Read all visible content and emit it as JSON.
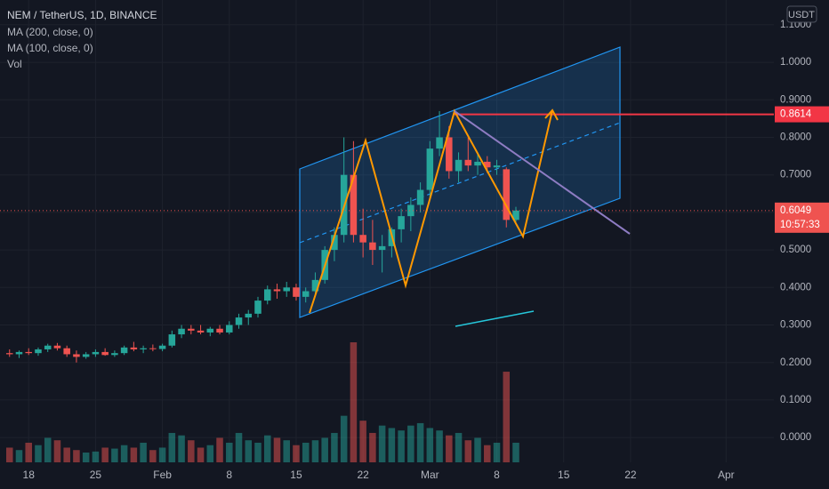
{
  "chart_data": {
    "type": "candlestick",
    "title": "NEM / TetherUS, 1D, BINANCE",
    "indicators": [
      "MA (200, close, 0)",
      "MA (100, close, 0)",
      "Vol"
    ],
    "currency": "USDT",
    "open": [
      0.225,
      0.222,
      0.228,
      0.225,
      0.235,
      0.245,
      0.238,
      0.222,
      0.215,
      0.222,
      0.228,
      0.22,
      0.225,
      0.24,
      0.235,
      0.238,
      0.236,
      0.245,
      0.275,
      0.29,
      0.285,
      0.28,
      0.29,
      0.28,
      0.3,
      0.32,
      0.33,
      0.365,
      0.395,
      0.39,
      0.4,
      0.375,
      0.39,
      0.42,
      0.5,
      0.54,
      0.7,
      0.54,
      0.52,
      0.5,
      0.51,
      0.555,
      0.59,
      0.62,
      0.66,
      0.77,
      0.8,
      0.71,
      0.74,
      0.725,
      0.735,
      0.72,
      0.715,
      0.58
    ],
    "high": [
      0.235,
      0.232,
      0.238,
      0.24,
      0.25,
      0.252,
      0.245,
      0.232,
      0.228,
      0.235,
      0.238,
      0.232,
      0.245,
      0.255,
      0.245,
      0.248,
      0.25,
      0.285,
      0.3,
      0.3,
      0.3,
      0.295,
      0.3,
      0.31,
      0.33,
      0.34,
      0.375,
      0.405,
      0.41,
      0.415,
      0.41,
      0.4,
      0.44,
      0.51,
      0.56,
      0.8,
      0.79,
      0.61,
      0.58,
      0.54,
      0.56,
      0.61,
      0.64,
      0.68,
      0.79,
      0.87,
      0.83,
      0.76,
      0.8,
      0.76,
      0.75,
      0.74,
      0.72,
      0.615
    ],
    "low": [
      0.215,
      0.212,
      0.22,
      0.218,
      0.228,
      0.232,
      0.215,
      0.2,
      0.21,
      0.215,
      0.218,
      0.215,
      0.22,
      0.23,
      0.225,
      0.23,
      0.23,
      0.24,
      0.265,
      0.275,
      0.275,
      0.27,
      0.275,
      0.275,
      0.29,
      0.3,
      0.32,
      0.355,
      0.37,
      0.375,
      0.365,
      0.36,
      0.38,
      0.41,
      0.47,
      0.52,
      0.52,
      0.48,
      0.46,
      0.44,
      0.48,
      0.52,
      0.55,
      0.6,
      0.64,
      0.75,
      0.69,
      0.68,
      0.71,
      0.7,
      0.705,
      0.7,
      0.56,
      0.575
    ],
    "close": [
      0.222,
      0.228,
      0.225,
      0.235,
      0.245,
      0.238,
      0.222,
      0.215,
      0.222,
      0.228,
      0.22,
      0.225,
      0.24,
      0.235,
      0.238,
      0.236,
      0.245,
      0.275,
      0.29,
      0.285,
      0.28,
      0.29,
      0.28,
      0.3,
      0.32,
      0.33,
      0.365,
      0.395,
      0.39,
      0.4,
      0.375,
      0.39,
      0.42,
      0.5,
      0.54,
      0.7,
      0.54,
      0.52,
      0.5,
      0.51,
      0.555,
      0.59,
      0.62,
      0.66,
      0.77,
      0.8,
      0.71,
      0.74,
      0.725,
      0.735,
      0.72,
      0.725,
      0.58,
      0.605
    ],
    "volume": [
      30,
      25,
      40,
      35,
      50,
      45,
      30,
      25,
      20,
      22,
      30,
      28,
      35,
      30,
      40,
      25,
      30,
      60,
      55,
      45,
      30,
      35,
      50,
      40,
      60,
      45,
      40,
      55,
      50,
      45,
      35,
      40,
      45,
      50,
      60,
      95,
      245,
      85,
      60,
      75,
      70,
      65,
      75,
      80,
      70,
      65,
      55,
      60,
      45,
      50,
      35,
      40,
      185,
      40
    ],
    "up_color": "#26a69a",
    "down_color": "#ef5350",
    "ylim": [
      -0.066,
      1.166
    ],
    "yticks": [
      {
        "value": 0,
        "label": "0.0000"
      },
      {
        "value": 0.1,
        "label": "0.1000"
      },
      {
        "value": 0.2,
        "label": "0.2000"
      },
      {
        "value": 0.3,
        "label": "0.3000"
      },
      {
        "value": 0.4,
        "label": "0.4000"
      },
      {
        "value": 0.5,
        "label": "0.5000"
      },
      {
        "value": 0.6,
        "label": "0.6000"
      },
      {
        "value": 0.7,
        "label": "0.7000"
      },
      {
        "value": 0.8,
        "label": "0.8000"
      },
      {
        "value": 0.9,
        "label": "0.9000"
      },
      {
        "value": 1,
        "label": "1.0000"
      },
      {
        "value": 1.1,
        "label": "1.1000"
      }
    ],
    "xlim": [
      -1,
      80
    ],
    "xticks": [
      {
        "value": 2,
        "label": "18"
      },
      {
        "value": 9,
        "label": "25"
      },
      {
        "value": 16,
        "label": "Feb"
      },
      {
        "value": 23,
        "label": "8"
      },
      {
        "value": 30,
        "label": "15"
      },
      {
        "value": 37,
        "label": "22"
      },
      {
        "value": 44,
        "label": "Mar"
      },
      {
        "value": 51,
        "label": "8"
      },
      {
        "value": 58,
        "label": "15"
      },
      {
        "value": 65,
        "label": "22"
      },
      {
        "value": 75,
        "label": "Apr"
      }
    ],
    "last_price": {
      "value": 0.6049,
      "label": "0.6049"
    },
    "countdown": "10:57:33",
    "target": {
      "value": 0.8614,
      "label": "0.8614"
    }
  }
}
